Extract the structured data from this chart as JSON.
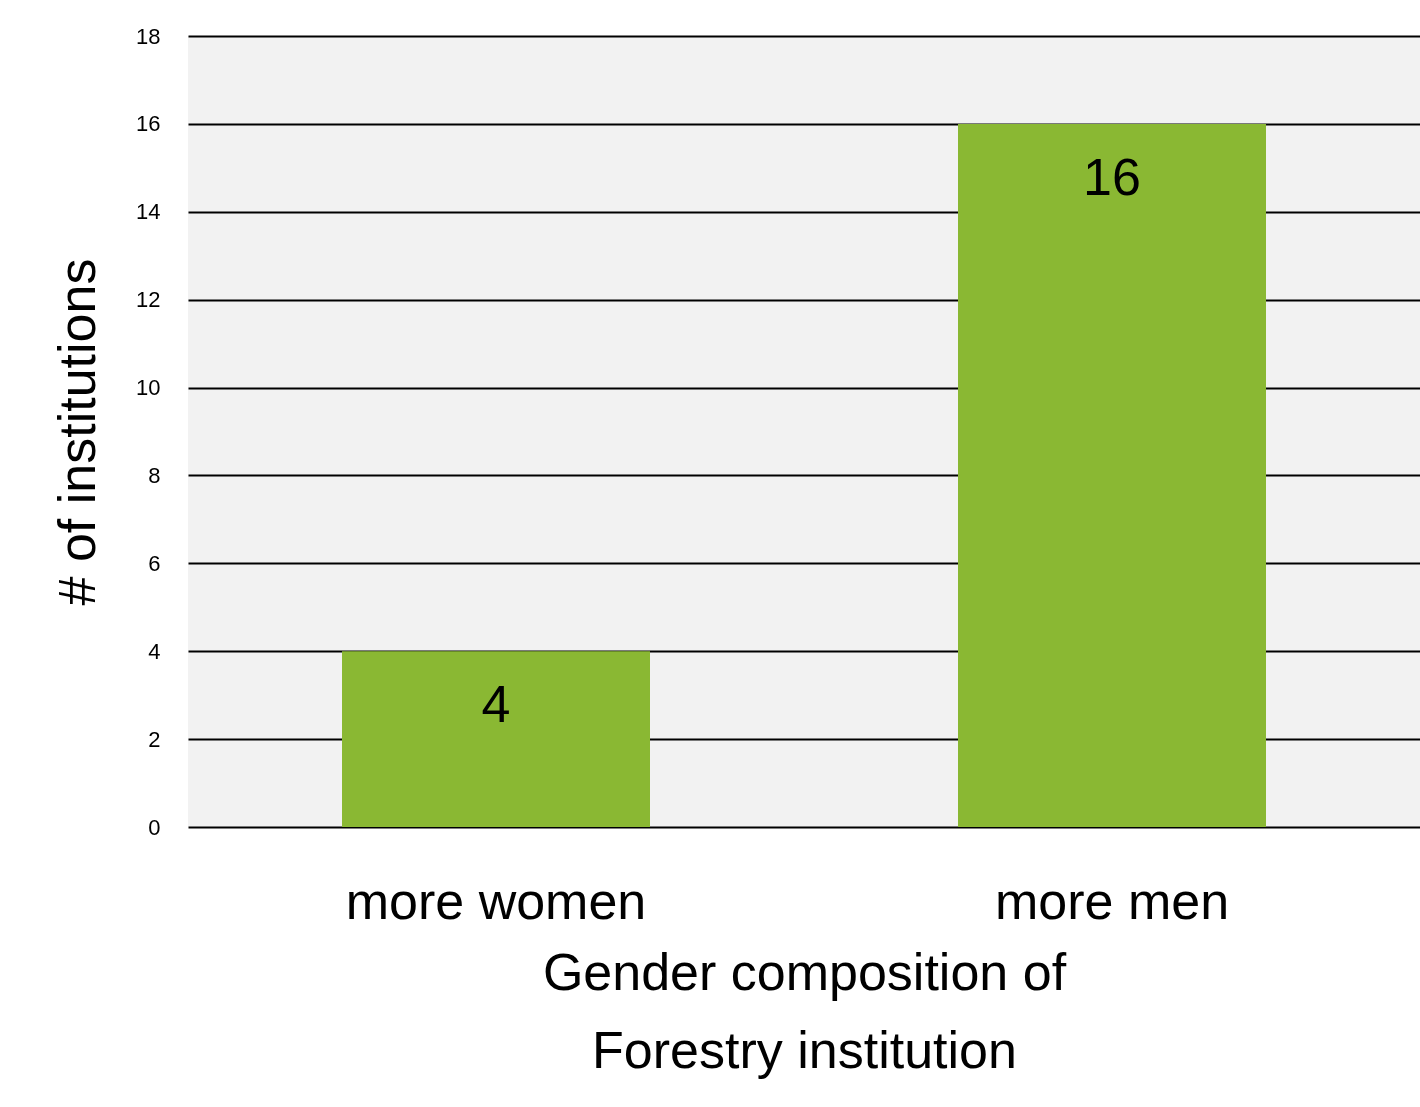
{
  "chart_data": {
    "type": "bar",
    "xlabel": "Gender composition of\nForestry institution",
    "ylabel": "# of institutions",
    "categories": [
      "more women",
      "more men"
    ],
    "values": [
      4,
      16
    ],
    "color": "#8ab833",
    "ylim": [
      0,
      18
    ],
    "yticks": [
      0,
      2,
      4,
      6,
      8,
      10,
      12,
      14,
      16,
      18
    ],
    "grid": "y",
    "data_labels": true
  }
}
